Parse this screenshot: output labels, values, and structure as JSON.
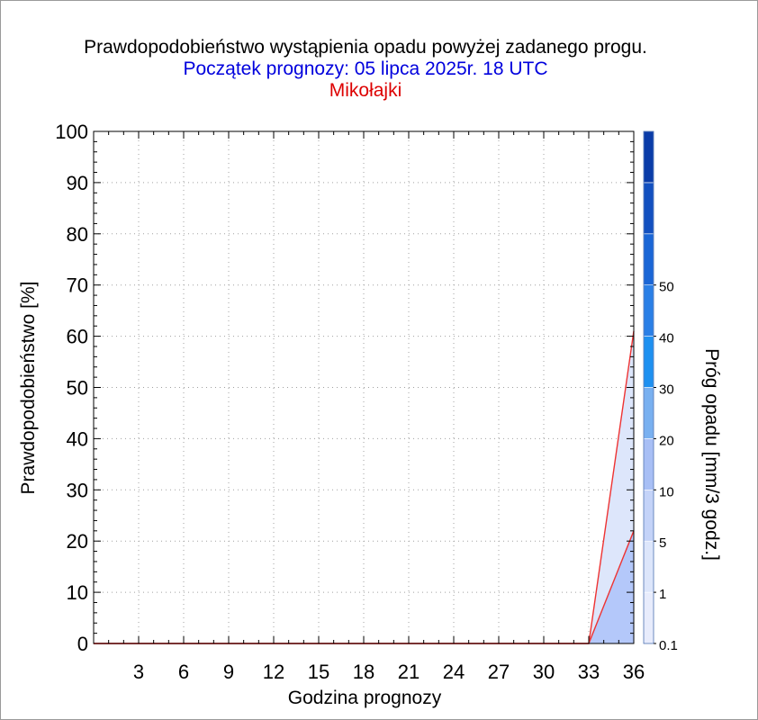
{
  "header": {
    "title": "Prawdopodobieństwo wystąpienia opadu powyżej zadanego progu.",
    "subtitle": "Początek prognozy: 05 lipca 2025r. 18 UTC",
    "location": "Mikołajki"
  },
  "colors": {
    "title": "#000000",
    "subtitle": "#0000dd",
    "location": "#dd0000",
    "series_line": "#ee3333",
    "fill_low": "#b4c8fa",
    "fill_high": "#dde6fb"
  },
  "chart_data": {
    "type": "area",
    "xlabel": "Godzina prognozy",
    "ylabel": "Prawdopodobieństwo [%]",
    "xlim": [
      0,
      36
    ],
    "ylim": [
      0,
      100
    ],
    "x_ticks": [
      "3",
      "6",
      "9",
      "12",
      "15",
      "18",
      "21",
      "24",
      "27",
      "30",
      "33",
      "36"
    ],
    "y_ticks": [
      "0",
      "10",
      "20",
      "30",
      "40",
      "50",
      "60",
      "70",
      "80",
      "90",
      "100"
    ],
    "grid": true,
    "x": [
      0,
      3,
      6,
      9,
      12,
      15,
      18,
      21,
      24,
      27,
      30,
      33,
      36
    ],
    "series": [
      {
        "threshold": "0.1",
        "values": [
          0,
          0,
          0,
          0,
          0,
          0,
          0,
          0,
          0,
          0,
          0,
          0,
          61
        ]
      },
      {
        "threshold": "1",
        "values": [
          0,
          0,
          0,
          0,
          0,
          0,
          0,
          0,
          0,
          0,
          0,
          0,
          22
        ]
      }
    ],
    "colorbar": {
      "label": "Próg opadu [mm/3 godz.]",
      "tick_labels": [
        "0.1",
        "1",
        "5",
        "10",
        "20",
        "30",
        "40",
        "50"
      ],
      "colors": [
        "#e8ecfc",
        "#dde6fb",
        "#c4d3f8",
        "#a8bff5",
        "#79b0f0",
        "#1e90f0",
        "#2a7fe6",
        "#1a66d6",
        "#1250c0",
        "#0a3ca8"
      ]
    }
  }
}
